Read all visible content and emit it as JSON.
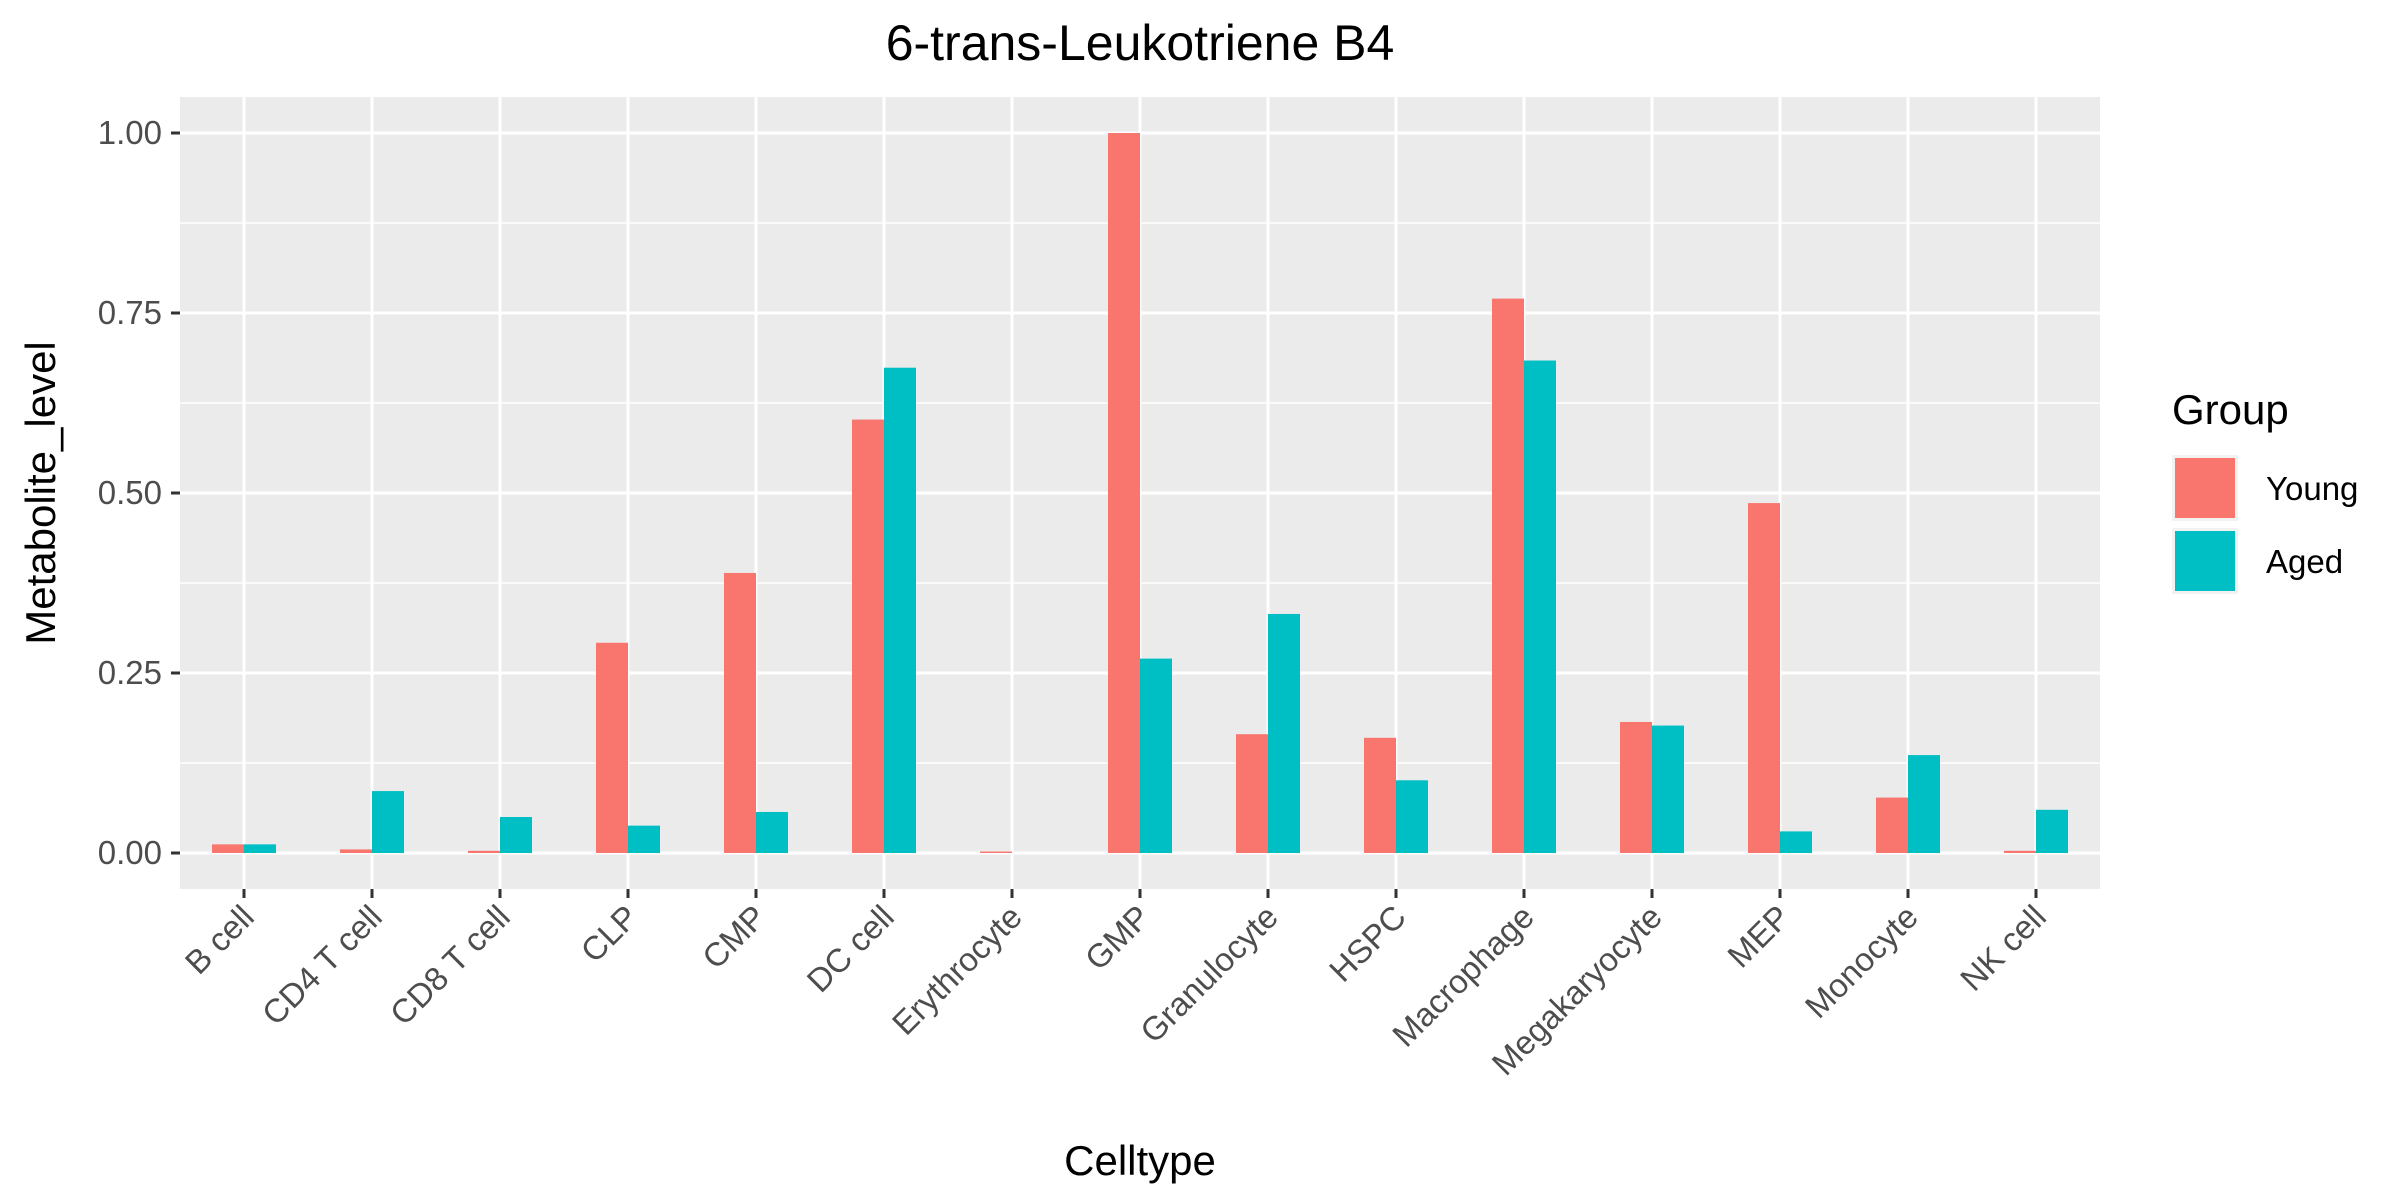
{
  "chart_data": {
    "type": "bar",
    "title": "6-trans-Leukotriene B4",
    "xlabel": "Celltype",
    "ylabel": "Metabolite_level",
    "categories": [
      "B cell",
      "CD4 T cell",
      "CD8 T cell",
      "CLP",
      "CMP",
      "DC cell",
      "Erythrocyte",
      "GMP",
      "Granulocyte",
      "HSPC",
      "Macrophage",
      "Megakaryocyte",
      "MEP",
      "Monocyte",
      "NK cell"
    ],
    "series": [
      {
        "name": "Young",
        "color": "#F8766D",
        "values": [
          0.012,
          0.005,
          0.003,
          0.292,
          0.389,
          0.602,
          0.002,
          1.0,
          0.165,
          0.16,
          0.77,
          0.182,
          0.486,
          0.077,
          0.003
        ]
      },
      {
        "name": "Aged",
        "color": "#00BFC4",
        "values": [
          0.012,
          0.086,
          0.05,
          0.038,
          0.057,
          0.674,
          0.0,
          0.27,
          0.332,
          0.101,
          0.684,
          0.177,
          0.03,
          0.136,
          0.06
        ]
      }
    ],
    "ylim": [
      -0.05,
      1.05
    ],
    "yticks": [
      0.0,
      0.25,
      0.5,
      0.75,
      1.0
    ],
    "ytick_labels": [
      "0.00",
      "0.25",
      "0.50",
      "0.75",
      "1.00"
    ],
    "grid": true,
    "panel_background": "#EBEBEB",
    "legend": {
      "title": "Group",
      "placement": "right"
    }
  }
}
